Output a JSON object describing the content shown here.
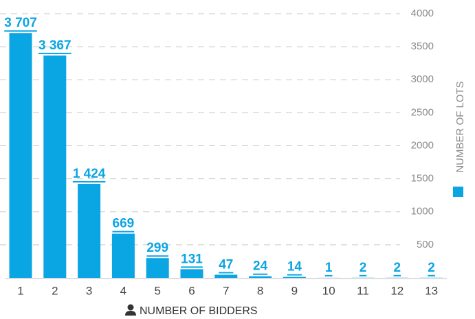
{
  "chart_data": {
    "type": "bar",
    "x_label": "NUMBER OF BIDDERS",
    "y_label": "NUMBER OF LOTS",
    "categories": [
      "1",
      "2",
      "3",
      "4",
      "5",
      "6",
      "7",
      "8",
      "9",
      "10",
      "11",
      "12",
      "13"
    ],
    "values": [
      3707,
      3367,
      1424,
      669,
      299,
      131,
      47,
      24,
      14,
      1,
      2,
      2,
      2
    ],
    "value_labels": [
      "3 707",
      "3 367",
      "1 424",
      "669",
      "299",
      "131",
      "47",
      "24",
      "14",
      "1",
      "2",
      "2",
      "2"
    ],
    "color": "#0aa5e3",
    "ylim": [
      0,
      4000
    ],
    "yticks": [
      500,
      1000,
      1500,
      2000,
      2500,
      3000,
      3500,
      4000
    ],
    "grid": true
  }
}
